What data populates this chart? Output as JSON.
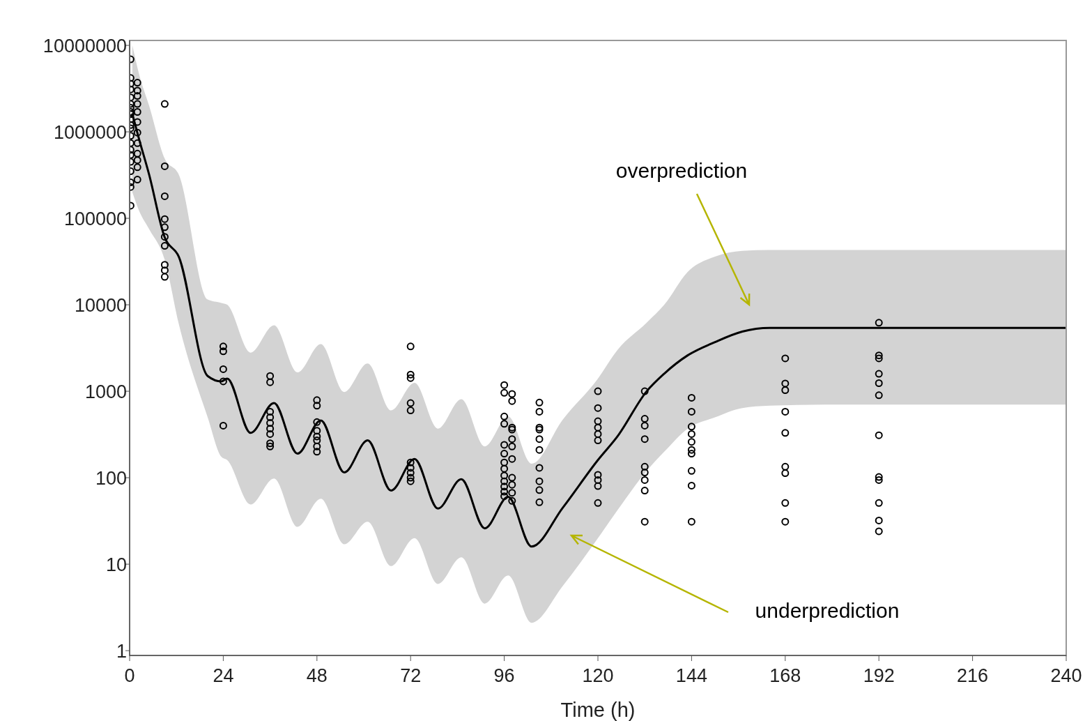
{
  "chart_data": {
    "type": "line",
    "xlabel": "Time (h)",
    "log": "y",
    "grid": false,
    "xlim": [
      0,
      240
    ],
    "xticks": [
      0,
      24,
      48,
      72,
      96,
      120,
      144,
      168,
      192,
      216,
      240
    ],
    "ylim": [
      0.88,
      11400000
    ],
    "yticks": [
      1,
      10,
      100,
      1000,
      10000,
      100000,
      1000000,
      10000000
    ],
    "annotations": [
      "overprediction",
      "underprediction"
    ],
    "series": [
      {
        "color": "#000000",
        "marker": "none",
        "line_style": "solid",
        "x": [
          0.7,
          2.5,
          5,
          9,
          12.6,
          20,
          23.5,
          25,
          31,
          37,
          43,
          49,
          55,
          61,
          67,
          73,
          79,
          85,
          91,
          97,
          103,
          111,
          120,
          125,
          132.5,
          137,
          143,
          150,
          157,
          164,
          178,
          200,
          240
        ],
        "values": [
          1600000,
          800000,
          320000,
          60000,
          36000,
          1500,
          1300,
          1400,
          330,
          730,
          190,
          460,
          115,
          270,
          71,
          165,
          44,
          96,
          26,
          60,
          16,
          45,
          160,
          300,
          1000,
          1600,
          2600,
          3700,
          4900,
          5400,
          5400,
          5400,
          5400
        ],
        "upper": [
          10000000,
          4500000,
          2000000,
          490000,
          320000,
          11500,
          10500,
          10000,
          2800,
          5800,
          1650,
          3500,
          980,
          2100,
          600,
          1250,
          370,
          810,
          230,
          510,
          145,
          470,
          1400,
          3000,
          6200,
          10000,
          24000,
          36000,
          42000,
          43000,
          43000,
          43000,
          43000
        ],
        "lower": [
          200000,
          120000,
          75000,
          33000,
          6000,
          500,
          175,
          160,
          49,
          98,
          27,
          57,
          17,
          31,
          9.5,
          20,
          5.9,
          12,
          3.5,
          7.4,
          2.1,
          5.6,
          20,
          42,
          120,
          200,
          370,
          500,
          640,
          680,
          700,
          700,
          700
        ]
      },
      {
        "type": "scatter",
        "color": "#000000",
        "marker": "circle",
        "x": [
          0.25,
          0.25,
          0.25,
          0.25,
          0.25,
          0.25,
          0.25,
          0.25,
          0.25,
          0.25,
          0.25,
          0.25,
          0.25,
          0.25,
          0.25,
          0.25,
          0.25,
          0.25,
          0.25,
          0.25,
          0.25,
          2,
          2,
          2,
          2,
          2,
          2,
          2,
          2,
          2,
          2,
          2,
          2,
          9,
          9,
          9,
          9,
          9,
          9,
          9,
          9,
          9,
          9,
          24,
          24,
          24,
          24,
          24,
          36,
          36,
          36,
          36,
          36,
          36,
          36,
          36,
          36,
          48,
          48,
          48,
          48,
          48,
          48,
          48,
          48,
          72,
          72,
          72,
          72,
          72,
          72,
          72,
          72,
          72,
          72,
          96,
          96,
          96,
          96,
          96,
          96,
          96,
          96,
          96,
          96,
          96,
          96,
          96,
          98,
          98,
          98,
          98,
          98,
          98,
          98,
          98,
          98,
          98,
          98,
          105,
          105,
          105,
          105,
          105,
          105,
          105,
          105,
          105,
          105,
          120,
          120,
          120,
          120,
          120,
          120,
          120,
          120,
          120,
          120,
          132,
          132,
          132,
          132,
          132,
          132,
          132,
          132,
          132,
          144,
          144,
          144,
          144,
          144,
          144,
          144,
          144,
          144,
          144,
          168,
          168,
          168,
          168,
          168,
          168,
          168,
          168,
          168,
          192,
          192,
          192,
          192,
          192,
          192,
          192,
          192,
          192,
          192,
          192,
          192
        ],
        "values": [
          6900000,
          4200000,
          3600000,
          3100000,
          2500000,
          2100000,
          1900000,
          1700000,
          1600000,
          1400000,
          1200000,
          1100000,
          900000,
          740000,
          620000,
          540000,
          450000,
          350000,
          260000,
          230000,
          140000,
          3700000,
          3000000,
          2600000,
          2100000,
          1700000,
          1300000,
          980000,
          740000,
          560000,
          470000,
          390000,
          280000,
          2100000,
          400000,
          180000,
          98000,
          79000,
          61000,
          48000,
          29000,
          25000,
          21000,
          3300,
          2900,
          1800,
          1300,
          400,
          1500,
          1270,
          580,
          500,
          430,
          370,
          320,
          250,
          230,
          790,
          680,
          440,
          350,
          300,
          270,
          230,
          200,
          3300,
          1560,
          1420,
          730,
          600,
          150,
          130,
          114,
          100,
          91,
          1180,
          960,
          510,
          420,
          240,
          190,
          150,
          127,
          106,
          91,
          79,
          69,
          61,
          930,
          770,
          380,
          360,
          280,
          230,
          165,
          100,
          83,
          67,
          54,
          740,
          580,
          380,
          360,
          280,
          210,
          130,
          91,
          72,
          52,
          1000,
          640,
          450,
          380,
          320,
          270,
          108,
          94,
          80,
          51,
          1000,
          480,
          400,
          280,
          134,
          115,
          94,
          71,
          31,
          840,
          580,
          390,
          320,
          260,
          210,
          190,
          120,
          81,
          31,
          2400,
          1230,
          1030,
          580,
          330,
          134,
          113,
          51,
          31,
          6200,
          2600,
          2400,
          1590,
          1240,
          900,
          310,
          102,
          94,
          51,
          32,
          24
        ]
      }
    ]
  }
}
